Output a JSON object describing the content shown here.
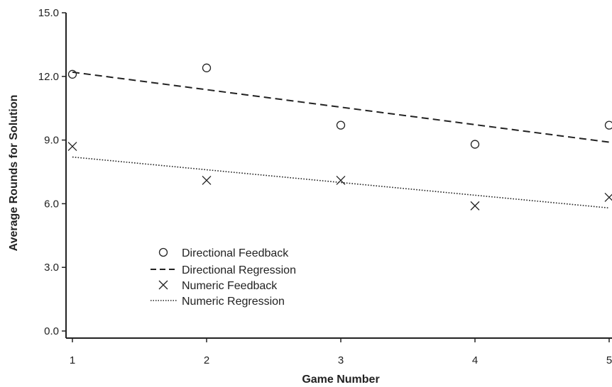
{
  "chart_data": {
    "type": "scatter",
    "xlabel": "Game Number",
    "ylabel": "Average Rounds for Solution",
    "xlim": [
      1,
      5
    ],
    "ylim": [
      0,
      15
    ],
    "x_ticks": [
      "1",
      "2",
      "3",
      "4",
      "5"
    ],
    "y_ticks": [
      "0.0",
      "3.0",
      "6.0",
      "9.0",
      "12.0",
      "15.0"
    ],
    "grid": false,
    "legend_position": "lower-left",
    "series": [
      {
        "name": "Directional Feedback",
        "kind": "scatter",
        "marker": "circle",
        "x": [
          1,
          2,
          3,
          4,
          5
        ],
        "y": [
          12.1,
          12.4,
          9.7,
          8.8,
          9.7
        ]
      },
      {
        "name": "Directional Regression",
        "kind": "line",
        "dash": "dashed",
        "x": [
          1,
          5
        ],
        "y": [
          12.2,
          8.9
        ]
      },
      {
        "name": "Numeric Feedback",
        "kind": "scatter",
        "marker": "x",
        "x": [
          1,
          2,
          3,
          4,
          5
        ],
        "y": [
          8.7,
          7.1,
          7.1,
          5.9,
          6.3
        ]
      },
      {
        "name": "Numeric Regression",
        "kind": "line",
        "dash": "dotted",
        "x": [
          1,
          5
        ],
        "y": [
          8.2,
          5.8
        ]
      }
    ],
    "colors": {
      "ink": "#222222"
    }
  }
}
